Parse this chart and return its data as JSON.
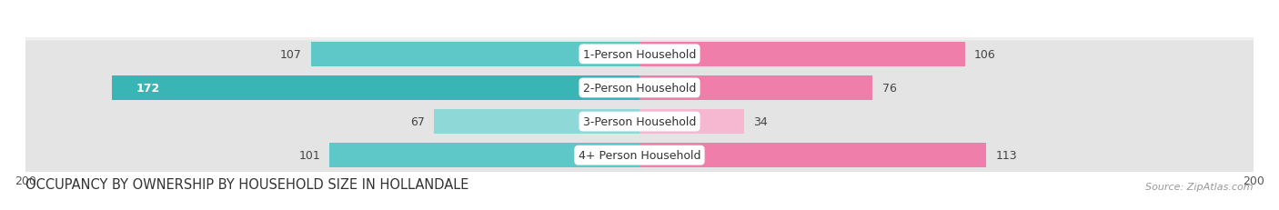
{
  "title": "OCCUPANCY BY OWNERSHIP BY HOUSEHOLD SIZE IN HOLLANDALE",
  "source": "Source: ZipAtlas.com",
  "categories": [
    "1-Person Household",
    "2-Person Household",
    "3-Person Household",
    "4+ Person Household"
  ],
  "owner_values": [
    107,
    172,
    67,
    101
  ],
  "renter_values": [
    106,
    76,
    34,
    113
  ],
  "max_val": 200,
  "owner_colors": [
    "#5ec8c8",
    "#3ab5b5",
    "#8ed8d8",
    "#5ec8c8"
  ],
  "renter_colors": [
    "#f07eaa",
    "#f07eaa",
    "#f5b8d0",
    "#f07eaa"
  ],
  "row_bg_colors": [
    "#efefef",
    "#e4e4e4",
    "#efefef",
    "#e4e4e4"
  ],
  "label_bg_color": "#ffffff",
  "title_fontsize": 10.5,
  "tick_fontsize": 9,
  "bar_label_fontsize": 9,
  "legend_fontsize": 9,
  "source_fontsize": 8,
  "figsize": [
    14.06,
    2.32
  ],
  "dpi": 100
}
